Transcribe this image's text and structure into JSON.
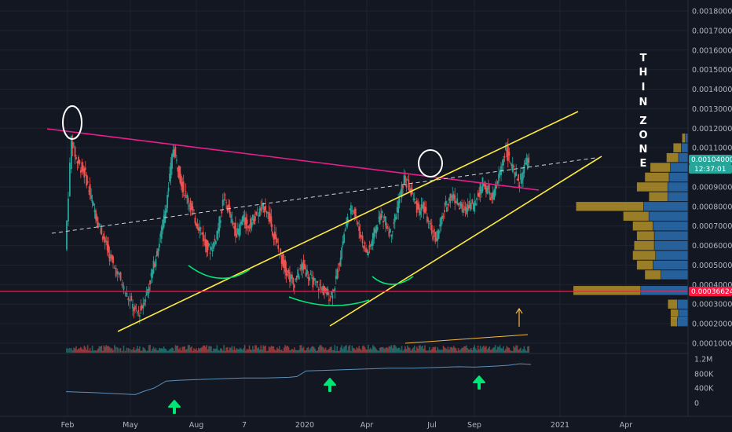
{
  "chart_data": {
    "type": "candlestick",
    "price_axis": {
      "ticks": [
        "0.00180000",
        "0.00170000",
        "0.00160000",
        "0.00150000",
        "0.00140000",
        "0.00130000",
        "0.00120000",
        "0.00110000",
        "0.00100000",
        "0.00090000",
        "0.00080000",
        "0.00070000",
        "0.00060000",
        "0.00050000",
        "0.00040000",
        "0.00030000",
        "0.00020000",
        "0.00010000"
      ],
      "ylim": [
        4e-05,
        0.00185
      ],
      "current_price": "0.00104000",
      "countdown": "12:37:01",
      "marked_level": "0.00036624"
    },
    "time_axis": {
      "labels": [
        "Feb",
        "May",
        "Aug",
        "7",
        "2020",
        "Apr",
        "Jul",
        "Sep",
        "2021",
        "Apr"
      ]
    },
    "indicator_axis": {
      "ticks": [
        "1.2M",
        "800K",
        "400K",
        "0"
      ]
    },
    "annotation_text": "THIN ZONE",
    "colors": {
      "up": "#26a69a",
      "down": "#ef5350",
      "trendline_pink": "#e91e8c",
      "channel_yellow": "#ffeb3b",
      "support_red": "#ff1744",
      "arcs_green": "#00e676",
      "arrows_green": "#00e676",
      "profile_gold": "#c8a02a",
      "profile_blue": "#2a6fb0"
    },
    "price_series_approx": [
      [
        0,
        0.00058
      ],
      [
        8,
        0.00115
      ],
      [
        14,
        0.00104
      ],
      [
        20,
        0.001
      ],
      [
        26,
        0.00096
      ],
      [
        32,
        0.00086
      ],
      [
        38,
        0.00078
      ],
      [
        44,
        0.0007
      ],
      [
        50,
        0.00064
      ],
      [
        56,
        0.00056
      ],
      [
        62,
        0.0005
      ],
      [
        70,
        0.00044
      ],
      [
        78,
        0.00036
      ],
      [
        86,
        0.0003
      ],
      [
        92,
        0.00025
      ],
      [
        98,
        0.00027
      ],
      [
        104,
        0.00034
      ],
      [
        110,
        0.00042
      ],
      [
        116,
        0.00052
      ],
      [
        122,
        0.00062
      ],
      [
        128,
        0.00074
      ],
      [
        134,
        0.0009
      ],
      [
        140,
        0.0011
      ],
      [
        146,
        0.001
      ],
      [
        152,
        0.0009
      ],
      [
        158,
        0.00085
      ],
      [
        164,
        0.00078
      ],
      [
        170,
        0.00072
      ],
      [
        176,
        0.00068
      ],
      [
        182,
        0.0006
      ],
      [
        188,
        0.00058
      ],
      [
        194,
        0.00062
      ],
      [
        200,
        0.00072
      ],
      [
        206,
        0.00085
      ],
      [
        212,
        0.00078
      ],
      [
        218,
        0.0007
      ],
      [
        224,
        0.00066
      ],
      [
        230,
        0.00074
      ],
      [
        236,
        0.0007
      ],
      [
        242,
        0.00072
      ],
      [
        248,
        0.00076
      ],
      [
        254,
        0.00078
      ],
      [
        260,
        0.0008
      ],
      [
        266,
        0.00072
      ],
      [
        272,
        0.00064
      ],
      [
        278,
        0.00056
      ],
      [
        284,
        0.0005
      ],
      [
        290,
        0.00045
      ],
      [
        296,
        0.0004
      ],
      [
        302,
        0.00045
      ],
      [
        308,
        0.0005
      ],
      [
        314,
        0.00046
      ],
      [
        320,
        0.00042
      ],
      [
        326,
        0.0004
      ],
      [
        332,
        0.00038
      ],
      [
        338,
        0.00036
      ],
      [
        344,
        0.00034
      ],
      [
        350,
        0.0004
      ],
      [
        356,
        0.00052
      ],
      [
        362,
        0.00066
      ],
      [
        368,
        0.00076
      ],
      [
        374,
        0.0008
      ],
      [
        380,
        0.0007
      ],
      [
        386,
        0.00062
      ],
      [
        392,
        0.00056
      ],
      [
        398,
        0.00062
      ],
      [
        404,
        0.0007
      ],
      [
        410,
        0.00076
      ],
      [
        416,
        0.00072
      ],
      [
        422,
        0.00066
      ],
      [
        428,
        0.00074
      ],
      [
        434,
        0.00084
      ],
      [
        440,
        0.00094
      ],
      [
        446,
        0.0009
      ],
      [
        452,
        0.00084
      ],
      [
        458,
        0.00078
      ],
      [
        464,
        0.0008
      ],
      [
        470,
        0.00074
      ],
      [
        476,
        0.00066
      ],
      [
        482,
        0.00064
      ],
      [
        488,
        0.00072
      ],
      [
        494,
        0.0008
      ],
      [
        500,
        0.00086
      ],
      [
        506,
        0.00084
      ],
      [
        512,
        0.0008
      ],
      [
        518,
        0.00078
      ],
      [
        524,
        0.00082
      ],
      [
        530,
        0.0008
      ],
      [
        536,
        0.00086
      ],
      [
        542,
        0.00092
      ],
      [
        548,
        0.00088
      ],
      [
        554,
        0.00084
      ],
      [
        560,
        0.0009
      ],
      [
        566,
        0.001
      ],
      [
        572,
        0.0011
      ],
      [
        578,
        0.00102
      ],
      [
        584,
        0.00096
      ],
      [
        590,
        0.00092
      ],
      [
        596,
        0.001
      ],
      [
        602,
        0.00104
      ]
    ],
    "volume_profile_rows": [
      {
        "price": 0.00115,
        "up": 0.05,
        "down": 0.04
      },
      {
        "price": 0.0011,
        "up": 0.12,
        "down": 0.1
      },
      {
        "price": 0.00105,
        "up": 0.18,
        "down": 0.14
      },
      {
        "price": 0.001,
        "up": 0.3,
        "down": 0.26
      },
      {
        "price": 0.00095,
        "up": 0.36,
        "down": 0.28
      },
      {
        "price": 0.0009,
        "up": 0.46,
        "down": 0.3
      },
      {
        "price": 0.00085,
        "up": 0.28,
        "down": 0.3
      },
      {
        "price": 0.0008,
        "up": 1.0,
        "down": 0.66
      },
      {
        "price": 0.00075,
        "up": 0.38,
        "down": 0.58
      },
      {
        "price": 0.0007,
        "up": 0.3,
        "down": 0.52
      },
      {
        "price": 0.00065,
        "up": 0.26,
        "down": 0.5
      },
      {
        "price": 0.0006,
        "up": 0.3,
        "down": 0.5
      },
      {
        "price": 0.00055,
        "up": 0.34,
        "down": 0.48
      },
      {
        "price": 0.0005,
        "up": 0.24,
        "down": 0.52
      },
      {
        "price": 0.00045,
        "up": 0.24,
        "down": 0.4
      },
      {
        "price": 0.00037,
        "up": 1.0,
        "down": 0.7
      },
      {
        "price": 0.0003,
        "up": 0.14,
        "down": 0.16
      },
      {
        "price": 0.00025,
        "up": 0.12,
        "down": 0.14
      },
      {
        "price": 0.00021,
        "up": 0.1,
        "down": 0.16
      }
    ],
    "obv_series_approx": [
      [
        0,
        0.3
      ],
      [
        30,
        0.28
      ],
      [
        60,
        0.25
      ],
      [
        90,
        0.22
      ],
      [
        100,
        0.3
      ],
      [
        115,
        0.4
      ],
      [
        130,
        0.58
      ],
      [
        145,
        0.6
      ],
      [
        170,
        0.62
      ],
      [
        200,
        0.64
      ],
      [
        230,
        0.66
      ],
      [
        260,
        0.66
      ],
      [
        290,
        0.68
      ],
      [
        300,
        0.7
      ],
      [
        312,
        0.85
      ],
      [
        330,
        0.86
      ],
      [
        360,
        0.88
      ],
      [
        390,
        0.9
      ],
      [
        420,
        0.92
      ],
      [
        450,
        0.92
      ],
      [
        480,
        0.94
      ],
      [
        510,
        0.96
      ],
      [
        530,
        0.95
      ],
      [
        560,
        0.98
      ],
      [
        575,
        1.0
      ],
      [
        590,
        1.04
      ],
      [
        604,
        1.02
      ]
    ]
  }
}
